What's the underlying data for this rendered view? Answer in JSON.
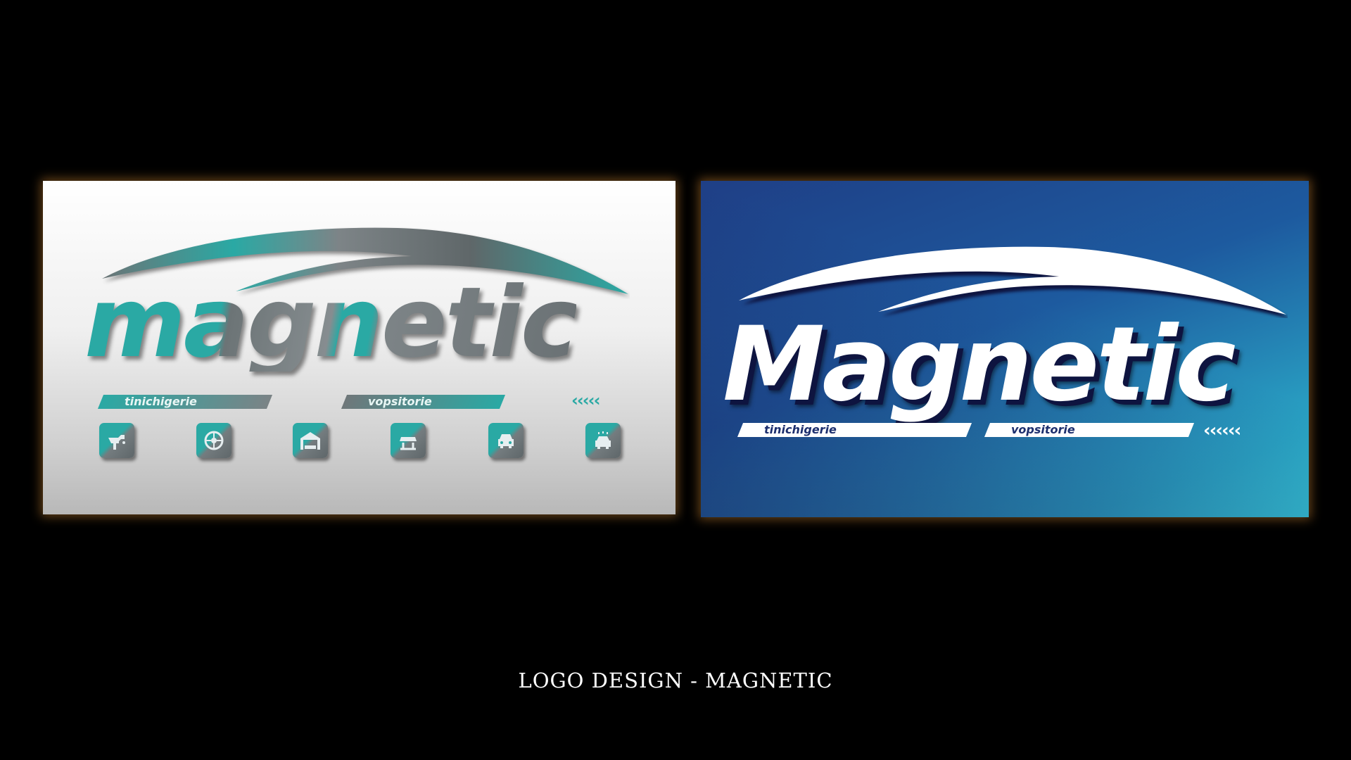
{
  "caption": "LOGO DESIGN - MAGNETIC",
  "logo_left": {
    "wordmark": "magnetic",
    "tagline_left": "tinichigerie",
    "tagline_right": "vopsitorie",
    "chevrons": "‹‹‹‹‹",
    "service_icons": [
      "spray-gun-icon",
      "wheel-icon",
      "garage-icon",
      "car-lift-icon",
      "car-front-icon",
      "car-wash-icon"
    ],
    "colors": {
      "teal": "#2aa9a4",
      "concrete": "#6c7476",
      "background": "#f2f2f2"
    }
  },
  "logo_right": {
    "wordmark": "Magnetic",
    "tagline_left": "tinichigerie",
    "tagline_right": "vopsitorie",
    "chevrons": "‹‹‹‹‹‹",
    "colors": {
      "background_top": "#1f3f86",
      "background_corner": "#35c9d9",
      "wordmark": "#ffffff",
      "tagline_text": "#1d2f6e"
    }
  },
  "colors": {
    "page_background": "#000000",
    "panel_glow": "#ba782c",
    "caption": "#ffffff"
  }
}
